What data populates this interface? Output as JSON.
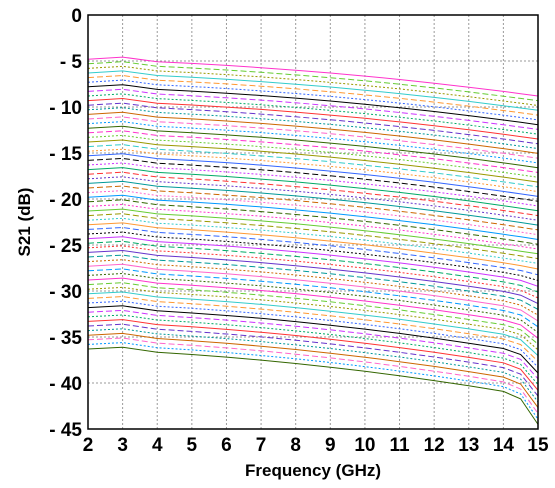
{
  "chart_data": {
    "type": "line",
    "xlabel": "Frequency (GHz)",
    "ylabel": "S21 (dB)",
    "xlim": [
      2,
      15
    ],
    "ylim": [
      -45,
      0
    ],
    "xticks": [
      "2",
      "3",
      "4",
      "5",
      "6",
      "7",
      "8",
      "9",
      "10",
      "11",
      "12",
      "13",
      "14",
      "15"
    ],
    "yticks": [
      "0",
      "- 5",
      "- 10",
      "- 15",
      "- 20",
      "- 25",
      "- 30",
      "- 35",
      "- 40",
      "- 45"
    ],
    "xtick_values": [
      2,
      3,
      4,
      5,
      6,
      7,
      8,
      9,
      10,
      11,
      12,
      13,
      14,
      15
    ],
    "ytick_values": [
      0,
      -5,
      -10,
      -15,
      -20,
      -25,
      -30,
      -35,
      -40,
      -45
    ],
    "grid": true,
    "legend": "none",
    "x": [
      2,
      3,
      4,
      5,
      6,
      7,
      8,
      9,
      10,
      11,
      12,
      13,
      14,
      14.5,
      15
    ],
    "series_count": 64,
    "series_start_db": {
      "first": -4.8,
      "step": -0.5,
      "values": [
        -4.8,
        -5.3,
        -5.8,
        -6.3,
        -6.8,
        -7.3,
        -7.8,
        -8.3,
        -8.8,
        -9.3,
        -9.8,
        -10.3,
        -10.8,
        -11.3,
        -11.8,
        -12.3,
        -12.8,
        -13.3,
        -13.8,
        -14.3,
        -14.8,
        -15.3,
        -15.8,
        -16.3,
        -16.8,
        -17.3,
        -17.8,
        -18.3,
        -18.8,
        -19.3,
        -19.8,
        -20.3,
        -20.8,
        -21.3,
        -21.8,
        -22.3,
        -22.8,
        -23.3,
        -23.8,
        -24.3,
        -24.8,
        -25.3,
        -25.8,
        -26.3,
        -26.8,
        -27.3,
        -27.8,
        -28.3,
        -28.8,
        -29.3,
        -29.8,
        -30.3,
        -30.8,
        -31.3,
        -31.8,
        -32.3,
        -32.8,
        -33.3,
        -33.8,
        -34.3,
        -34.8,
        -35.3,
        -35.8,
        -36.3
      ]
    },
    "series_end_db": {
      "first": -8.8,
      "step": -0.52
    },
    "colors": [
      "#ff33cc",
      "#66cc33",
      "#999900",
      "#33cccc",
      "#ff9933",
      "#3366ff",
      "#000000",
      "#cc33ff",
      "#00aa66",
      "#ff3333",
      "#6633cc",
      "#009999",
      "#cc6600",
      "#ff66cc",
      "#0099ff",
      "#336600"
    ]
  }
}
